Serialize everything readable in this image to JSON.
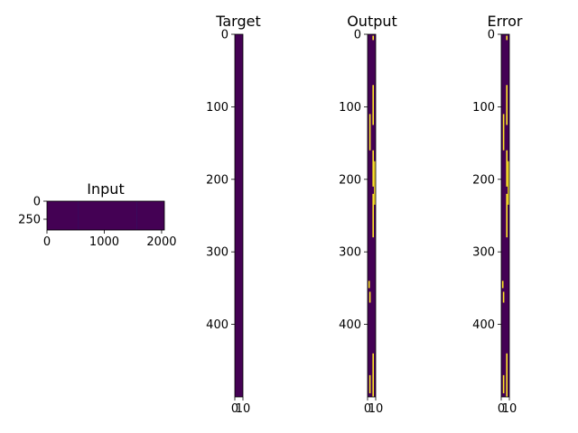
{
  "chart_data": [
    {
      "type": "heatmap",
      "title": "Input",
      "x_ticks": [
        "0",
        "1000",
        "2000"
      ],
      "y_ticks": [
        "0",
        "250"
      ],
      "xlim": [
        0,
        2048
      ],
      "ylim": [
        0,
        400
      ],
      "colormap": "viridis",
      "background_color": "#440154",
      "streak_color": "#3a0a5c",
      "faint_streaks_x": [
        540,
        1560
      ]
    },
    {
      "type": "heatmap",
      "title": "Target",
      "x_ticks": [
        "0",
        "10"
      ],
      "y_ticks": [
        "0",
        "100",
        "200",
        "300",
        "400"
      ],
      "xlim": [
        0,
        10
      ],
      "ylim": [
        0,
        500
      ],
      "colormap": "viridis",
      "background_color": "#440154",
      "highlights": []
    },
    {
      "type": "heatmap",
      "title": "Output",
      "x_ticks": [
        "0",
        "10"
      ],
      "y_ticks": [
        "0",
        "100",
        "200",
        "300",
        "400"
      ],
      "xlim": [
        0,
        10
      ],
      "ylim": [
        0,
        500
      ],
      "colormap": "viridis",
      "background_color": "#440154",
      "highlight_color": "#fde725",
      "highlights": [
        {
          "y_start": 2,
          "y_end": 8,
          "x": 6
        },
        {
          "y_start": 70,
          "y_end": 125,
          "x": 6
        },
        {
          "y_start": 110,
          "y_end": 160,
          "x": 2
        },
        {
          "y_start": 160,
          "y_end": 210,
          "x": 6
        },
        {
          "y_start": 175,
          "y_end": 235,
          "x": 8
        },
        {
          "y_start": 220,
          "y_end": 280,
          "x": 6
        },
        {
          "y_start": 340,
          "y_end": 350,
          "x": 1
        },
        {
          "y_start": 355,
          "y_end": 370,
          "x": 2
        },
        {
          "y_start": 440,
          "y_end": 500,
          "x": 6
        },
        {
          "y_start": 470,
          "y_end": 495,
          "x": 2
        }
      ]
    },
    {
      "type": "heatmap",
      "title": "Error",
      "x_ticks": [
        "0",
        "10"
      ],
      "y_ticks": [
        "0",
        "100",
        "200",
        "300",
        "400"
      ],
      "xlim": [
        0,
        10
      ],
      "ylim": [
        0,
        500
      ],
      "colormap": "viridis",
      "background_color": "#440154",
      "highlight_color": "#fde725",
      "highlights": [
        {
          "y_start": 2,
          "y_end": 8,
          "x": 6
        },
        {
          "y_start": 70,
          "y_end": 125,
          "x": 6
        },
        {
          "y_start": 110,
          "y_end": 160,
          "x": 2
        },
        {
          "y_start": 160,
          "y_end": 210,
          "x": 6
        },
        {
          "y_start": 175,
          "y_end": 235,
          "x": 8
        },
        {
          "y_start": 220,
          "y_end": 280,
          "x": 6
        },
        {
          "y_start": 340,
          "y_end": 350,
          "x": 1
        },
        {
          "y_start": 355,
          "y_end": 370,
          "x": 2
        },
        {
          "y_start": 440,
          "y_end": 500,
          "x": 6
        },
        {
          "y_start": 470,
          "y_end": 495,
          "x": 2
        }
      ]
    }
  ]
}
